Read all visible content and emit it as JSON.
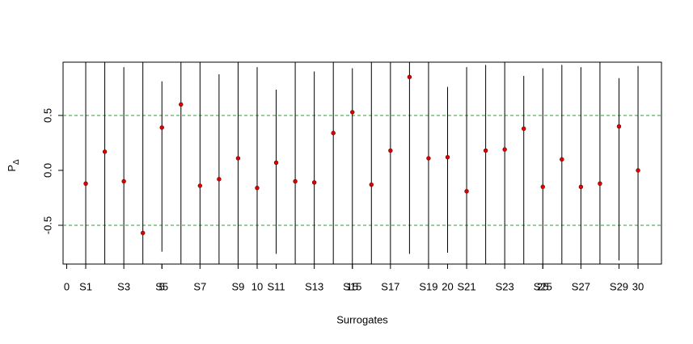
{
  "chart_data": {
    "type": "errorbar",
    "xlabel": "Surrogates",
    "ylabel": "P",
    "ylabel_subscript": "Δ",
    "x": [
      1,
      2,
      3,
      4,
      5,
      6,
      7,
      8,
      9,
      10,
      11,
      12,
      13,
      14,
      15,
      16,
      17,
      18,
      19,
      20,
      21,
      22,
      23,
      24,
      25,
      26,
      27,
      28,
      29,
      30
    ],
    "values": [
      -0.12,
      0.17,
      -0.1,
      -0.57,
      0.39,
      0.6,
      -0.14,
      -0.08,
      0.11,
      -0.16,
      0.07,
      -0.1,
      -0.11,
      0.34,
      0.53,
      -0.13,
      0.18,
      0.85,
      0.11,
      0.12,
      -0.19,
      0.18,
      0.19,
      0.38,
      -0.15,
      0.1,
      -0.15,
      -0.12,
      0.4,
      0.0
    ],
    "lower": [
      -1,
      -1,
      -1,
      -1,
      -0.74,
      -1,
      -1,
      -1,
      -1,
      -1,
      -0.76,
      -1,
      -1,
      -1,
      -1,
      -1,
      -1,
      -0.76,
      -1,
      -0.75,
      -1,
      -1,
      -1,
      -1,
      -1,
      -1,
      -1,
      -1,
      -0.82,
      -1
    ],
    "upper": [
      1,
      1,
      0.94,
      1,
      0.81,
      1,
      1,
      0.875,
      1,
      0.94,
      0.735,
      1,
      0.9,
      1,
      0.93,
      1,
      1,
      1,
      1,
      0.76,
      0.94,
      0.96,
      1,
      0.86,
      0.93,
      0.96,
      0.94,
      1,
      0.84,
      0.95
    ],
    "point_color": "#e00000",
    "bar_color": "#000000",
    "hlines": [
      -0.5,
      0.5
    ],
    "hline_color": "#2ca02c",
    "xlim": [
      -0.19,
      31.23
    ],
    "ylim": [
      -0.853,
      0.985
    ],
    "xticks": [
      0,
      {
        "value": 1,
        "label": "S1"
      },
      {
        "value": 3,
        "label": "S3"
      },
      5,
      {
        "value": 5,
        "label": "S5"
      },
      {
        "value": 7,
        "label": "S7"
      },
      {
        "value": 9,
        "label": "S9"
      },
      10,
      {
        "value": 11,
        "label": "S11"
      },
      {
        "value": 13,
        "label": "S13"
      },
      15,
      {
        "value": 15,
        "label": "S15"
      },
      {
        "value": 17,
        "label": "S17"
      },
      {
        "value": 19,
        "label": "S19"
      },
      20,
      {
        "value": 21,
        "label": "S21"
      },
      {
        "value": 23,
        "label": "S23"
      },
      25,
      {
        "value": 25,
        "label": "S25"
      },
      {
        "value": 27,
        "label": "S27"
      },
      {
        "value": 29,
        "label": "S29"
      },
      30
    ],
    "yticks": [
      -0.5,
      {
        "value": 0,
        "label": "0.0"
      },
      0.5
    ]
  }
}
